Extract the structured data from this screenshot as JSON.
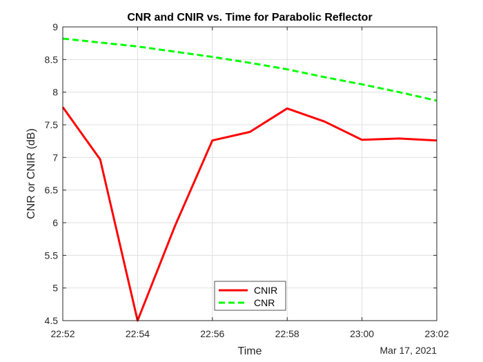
{
  "chart_data": {
    "type": "line",
    "title": "CNR and CNIR vs. Time for Parabolic Reflector",
    "xlabel": "Time",
    "ylabel": "CNR or CNIR (dB)",
    "date_label": "Mar 17, 2021",
    "x": [
      "22:52",
      "22:53",
      "22:54",
      "22:55",
      "22:56",
      "22:57",
      "22:58",
      "22:59",
      "23:00",
      "23:01",
      "23:02"
    ],
    "xticks": [
      "22:52",
      "22:54",
      "22:56",
      "22:58",
      "23:00",
      "23:02"
    ],
    "ylim": [
      4.5,
      9
    ],
    "yticks": [
      "4.5",
      "5",
      "5.5",
      "6",
      "6.5",
      "7",
      "7.5",
      "8",
      "8.5",
      "9"
    ],
    "grid": true,
    "legend_position": "bottom-center",
    "series": [
      {
        "name": "CNIR",
        "color": "#ff0000",
        "style": "solid",
        "values": [
          7.77,
          6.97,
          4.5,
          5.95,
          7.26,
          7.39,
          7.75,
          7.55,
          7.27,
          7.29,
          7.26
        ]
      },
      {
        "name": "CNR",
        "color": "#00ff00",
        "style": "dashed",
        "values": [
          8.82,
          8.76,
          8.7,
          8.62,
          8.54,
          8.45,
          8.35,
          8.23,
          8.12,
          8.0,
          7.87
        ]
      }
    ]
  }
}
